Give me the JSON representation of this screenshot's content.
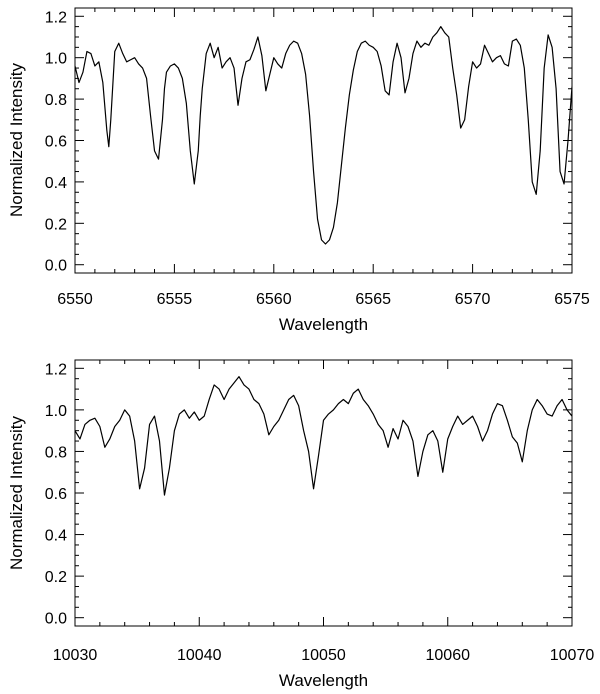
{
  "chart_data": [
    {
      "type": "line",
      "title": "",
      "xlabel": "Wavelength",
      "ylabel": "Normalized Intensity",
      "xlim": [
        6550,
        6575
      ],
      "ylim": [
        -0.04,
        1.24
      ],
      "grid": false,
      "line_color": "#000000",
      "xticks": [
        6550,
        6555,
        6560,
        6565,
        6570,
        6575
      ],
      "xtick_labels": [
        "6550",
        "6555",
        "6560",
        "6565",
        "6570",
        "6575"
      ],
      "yticks": [
        0.0,
        0.2,
        0.4,
        0.6,
        0.8,
        1.0,
        1.2
      ],
      "ytick_labels": [
        "0.0",
        "0.2",
        "0.4",
        "0.6",
        "0.8",
        "1.0",
        "1.2"
      ],
      "series": [
        {
          "x": [
            6550.0,
            6550.2,
            6550.4,
            6550.6,
            6550.8,
            6551.0,
            6551.2,
            6551.4,
            6551.6,
            6551.7,
            6551.8,
            6552.0,
            6552.2,
            6552.4,
            6552.6,
            6552.8,
            6553.0,
            6553.2,
            6553.4,
            6553.6,
            6553.8,
            6554.0,
            6554.2,
            6554.4,
            6554.5,
            6554.6,
            6554.8,
            6555.0,
            6555.2,
            6555.4,
            6555.6,
            6555.8,
            6556.0,
            6556.2,
            6556.3,
            6556.4,
            6556.6,
            6556.8,
            6557.0,
            6557.2,
            6557.4,
            6557.6,
            6557.8,
            6558.0,
            6558.2,
            6558.4,
            6558.6,
            6558.8,
            6559.0,
            6559.2,
            6559.4,
            6559.6,
            6559.8,
            6560.0,
            6560.2,
            6560.4,
            6560.6,
            6560.8,
            6561.0,
            6561.2,
            6561.4,
            6561.6,
            6561.8,
            6562.0,
            6562.2,
            6562.4,
            6562.6,
            6562.8,
            6563.0,
            6563.2,
            6563.4,
            6563.6,
            6563.8,
            6564.0,
            6564.2,
            6564.4,
            6564.6,
            6564.8,
            6565.0,
            6565.2,
            6565.4,
            6565.6,
            6565.8,
            6566.0,
            6566.2,
            6566.4,
            6566.6,
            6566.8,
            6567.0,
            6567.2,
            6567.4,
            6567.6,
            6567.8,
            6568.0,
            6568.2,
            6568.4,
            6568.6,
            6568.8,
            6569.0,
            6569.2,
            6569.4,
            6569.6,
            6569.8,
            6570.0,
            6570.2,
            6570.4,
            6570.6,
            6570.8,
            6571.0,
            6571.2,
            6571.4,
            6571.6,
            6571.8,
            6572.0,
            6572.2,
            6572.4,
            6572.6,
            6572.8,
            6573.0,
            6573.2,
            6573.4,
            6573.6,
            6573.8,
            6574.0,
            6574.2,
            6574.4,
            6574.6,
            6574.8,
            6575.0
          ],
          "y": [
            0.96,
            0.88,
            0.93,
            1.03,
            1.02,
            0.96,
            0.98,
            0.88,
            0.65,
            0.57,
            0.7,
            1.03,
            1.07,
            1.02,
            0.98,
            0.99,
            1.0,
            0.97,
            0.95,
            0.9,
            0.72,
            0.55,
            0.51,
            0.7,
            0.85,
            0.93,
            0.96,
            0.97,
            0.95,
            0.9,
            0.78,
            0.55,
            0.39,
            0.55,
            0.72,
            0.85,
            1.02,
            1.07,
            1.0,
            1.05,
            0.95,
            0.98,
            1.0,
            0.95,
            0.77,
            0.9,
            0.98,
            0.99,
            1.04,
            1.1,
            1.01,
            0.84,
            0.92,
            1.0,
            0.97,
            0.95,
            1.02,
            1.06,
            1.08,
            1.07,
            1.02,
            0.92,
            0.72,
            0.45,
            0.22,
            0.12,
            0.1,
            0.12,
            0.18,
            0.3,
            0.48,
            0.66,
            0.82,
            0.94,
            1.03,
            1.07,
            1.08,
            1.06,
            1.05,
            1.03,
            0.96,
            0.84,
            0.82,
            0.98,
            1.07,
            1.0,
            0.83,
            0.9,
            1.02,
            1.08,
            1.05,
            1.07,
            1.06,
            1.1,
            1.12,
            1.15,
            1.12,
            1.1,
            0.95,
            0.82,
            0.66,
            0.7,
            0.86,
            0.98,
            0.95,
            0.97,
            1.06,
            1.02,
            0.98,
            1.0,
            1.01,
            0.97,
            0.96,
            1.08,
            1.09,
            1.06,
            0.95,
            0.7,
            0.4,
            0.34,
            0.55,
            0.95,
            1.11,
            1.05,
            0.85,
            0.45,
            0.39,
            0.6,
            0.86
          ],
          "line_width": 1.2
        }
      ]
    },
    {
      "type": "line",
      "title": "",
      "xlabel": "Wavelength",
      "ylabel": "Normalized Intensity",
      "xlim": [
        10030,
        10070
      ],
      "ylim": [
        -0.04,
        1.24
      ],
      "grid": false,
      "line_color": "#000000",
      "xticks": [
        10030,
        10040,
        10050,
        10060,
        10070
      ],
      "xtick_labels": [
        "10030",
        "10040",
        "10050",
        "10060",
        "10070"
      ],
      "yticks": [
        0.0,
        0.2,
        0.4,
        0.6,
        0.8,
        1.0,
        1.2
      ],
      "ytick_labels": [
        "0.0",
        "0.2",
        "0.4",
        "0.6",
        "0.8",
        "1.0",
        "1.2"
      ],
      "series": [
        {
          "x": [
            10030.0,
            10030.4,
            10030.8,
            10031.2,
            10031.6,
            10032.0,
            10032.4,
            10032.8,
            10033.2,
            10033.6,
            10034.0,
            10034.4,
            10034.8,
            10035.2,
            10035.6,
            10036.0,
            10036.4,
            10036.8,
            10037.2,
            10037.6,
            10038.0,
            10038.4,
            10038.8,
            10039.2,
            10039.6,
            10040.0,
            10040.4,
            10040.8,
            10041.2,
            10041.6,
            10042.0,
            10042.4,
            10042.8,
            10043.2,
            10043.6,
            10044.0,
            10044.4,
            10044.8,
            10045.2,
            10045.6,
            10046.0,
            10046.4,
            10046.8,
            10047.2,
            10047.6,
            10048.0,
            10048.4,
            10048.8,
            10049.2,
            10049.6,
            10050.0,
            10050.4,
            10050.8,
            10051.2,
            10051.6,
            10052.0,
            10052.4,
            10052.8,
            10053.2,
            10053.6,
            10054.0,
            10054.4,
            10054.8,
            10055.2,
            10055.6,
            10056.0,
            10056.4,
            10056.8,
            10057.2,
            10057.6,
            10058.0,
            10058.4,
            10058.8,
            10059.2,
            10059.6,
            10060.0,
            10060.4,
            10060.8,
            10061.2,
            10061.6,
            10062.0,
            10062.4,
            10062.8,
            10063.2,
            10063.6,
            10064.0,
            10064.4,
            10064.8,
            10065.2,
            10065.6,
            10066.0,
            10066.4,
            10066.8,
            10067.2,
            10067.6,
            10068.0,
            10068.4,
            10068.8,
            10069.2,
            10069.6,
            10070.0
          ],
          "y": [
            0.9,
            0.86,
            0.93,
            0.95,
            0.96,
            0.92,
            0.82,
            0.86,
            0.92,
            0.95,
            1.0,
            0.97,
            0.85,
            0.62,
            0.72,
            0.93,
            0.97,
            0.85,
            0.59,
            0.72,
            0.9,
            0.98,
            1.0,
            0.96,
            0.99,
            0.95,
            0.97,
            1.05,
            1.12,
            1.1,
            1.05,
            1.1,
            1.13,
            1.16,
            1.12,
            1.1,
            1.05,
            1.03,
            0.98,
            0.88,
            0.92,
            0.95,
            1.0,
            1.05,
            1.07,
            1.02,
            0.9,
            0.8,
            0.62,
            0.78,
            0.95,
            0.98,
            1.0,
            1.03,
            1.05,
            1.03,
            1.08,
            1.1,
            1.05,
            1.02,
            0.98,
            0.93,
            0.9,
            0.82,
            0.91,
            0.86,
            0.95,
            0.92,
            0.85,
            0.68,
            0.8,
            0.88,
            0.9,
            0.85,
            0.7,
            0.86,
            0.92,
            0.97,
            0.93,
            0.95,
            0.97,
            0.92,
            0.85,
            0.9,
            0.98,
            1.03,
            1.02,
            0.95,
            0.87,
            0.84,
            0.75,
            0.9,
            1.0,
            1.05,
            1.02,
            0.98,
            0.97,
            1.02,
            1.05,
            1.0,
            0.97
          ],
          "line_width": 1.2
        }
      ]
    }
  ]
}
